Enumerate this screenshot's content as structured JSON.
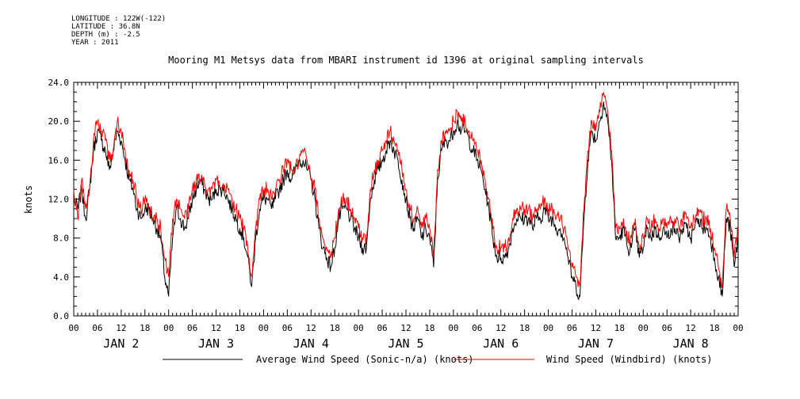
{
  "metadata": {
    "longitude": "LONGITUDE : 122W(-122)",
    "latitude": "LATITUDE : 36.8N",
    "depth": "DEPTH (m) : -2.5",
    "year": "YEAR : 2011"
  },
  "chart_data": {
    "type": "line",
    "title": "Mooring M1 Metsys data from MBARI instrument id 1396 at original sampling intervals",
    "ylabel": "knots",
    "xlabel": "",
    "ylim": [
      0,
      24
    ],
    "yticks": [
      0,
      4,
      8,
      12,
      16,
      20,
      24
    ],
    "ytick_labels": [
      "0.0",
      "4.0",
      "8.0",
      "12.0",
      "16.0",
      "20.0",
      "24.0"
    ],
    "x_unit": "hours since JAN 2 00:00",
    "xlim": [
      0,
      168
    ],
    "hour_tick_labels": [
      "00",
      "06",
      "12",
      "18"
    ],
    "day_labels": [
      "JAN  2",
      "JAN  3",
      "JAN  4",
      "JAN  5",
      "JAN  6",
      "JAN  7",
      "JAN  8"
    ],
    "grid": false,
    "legend_position": "bottom",
    "series": [
      {
        "name": "Average Wind Speed (Sonic-n/a) (knots)",
        "color": "#000000",
        "x": [
          0,
          1,
          2,
          3,
          4,
          5,
          6,
          7,
          8,
          9,
          10,
          11,
          12,
          13,
          14,
          15,
          16,
          17,
          18,
          19,
          20,
          21,
          22,
          23,
          24,
          25,
          26,
          27,
          28,
          29,
          30,
          31,
          32,
          33,
          34,
          35,
          36,
          37,
          38,
          39,
          40,
          41,
          42,
          43,
          44,
          45,
          46,
          47,
          48,
          49,
          50,
          51,
          52,
          53,
          54,
          55,
          56,
          57,
          58,
          59,
          60,
          61,
          62,
          63,
          64,
          65,
          66,
          67,
          68,
          69,
          70,
          71,
          72,
          73,
          74,
          75,
          76,
          77,
          78,
          79,
          80,
          81,
          82,
          83,
          84,
          85,
          86,
          87,
          88,
          89,
          90,
          91,
          92,
          93,
          94,
          95,
          96,
          97,
          98,
          99,
          100,
          101,
          102,
          103,
          104,
          105,
          106,
          107,
          108,
          109,
          110,
          111,
          112,
          113,
          114,
          115,
          116,
          117,
          118,
          119,
          120,
          121,
          122,
          123,
          124,
          125,
          126,
          127,
          128,
          129,
          130,
          131,
          132,
          133,
          134,
          135,
          136,
          137,
          138,
          139,
          140,
          141,
          142,
          143,
          144,
          145,
          146,
          147,
          148,
          149,
          150,
          151,
          152,
          153,
          154,
          155,
          156,
          157,
          158,
          159,
          160,
          161,
          162,
          163,
          164,
          165,
          166,
          167,
          168
        ],
        "values": [
          12,
          11,
          13,
          10,
          13,
          17,
          19,
          18,
          17,
          15,
          17,
          19,
          18,
          16,
          14,
          13,
          11,
          10,
          11,
          11,
          10,
          9,
          8,
          4,
          2,
          8,
          11,
          10,
          9,
          10,
          12,
          13,
          14,
          13,
          12,
          12,
          13,
          13,
          13,
          12,
          11,
          10,
          9,
          8,
          6,
          3,
          8,
          11,
          12,
          12,
          11,
          12,
          13,
          14,
          15,
          14,
          15,
          16,
          16,
          15,
          14,
          12,
          9,
          7,
          6,
          5,
          7,
          10,
          11,
          11,
          10,
          9,
          8,
          7,
          7,
          12,
          14,
          15,
          16,
          17,
          18,
          17,
          16,
          14,
          12,
          10,
          9,
          10,
          8,
          9,
          8,
          5,
          14,
          17,
          18,
          18,
          19,
          20,
          19,
          19,
          18,
          17,
          16,
          15,
          13,
          11,
          8,
          6,
          6,
          6,
          7,
          9,
          10,
          10,
          10,
          10,
          9,
          10,
          10,
          11,
          10,
          10,
          9,
          9,
          8,
          6,
          4,
          3,
          2,
          10,
          16,
          19,
          18,
          20,
          22,
          20,
          16,
          8,
          8,
          9,
          7,
          7,
          9,
          6,
          7,
          9,
          8,
          9,
          8,
          9,
          8,
          9,
          9,
          8,
          9,
          9,
          8,
          9,
          10,
          9,
          9,
          8,
          6,
          4,
          2,
          10,
          9,
          5,
          8
        ],
        "range_y": [
          1.7,
          22.1
        ]
      },
      {
        "name": "Wind Speed (Windbird) (knots)",
        "color": "#ff0000",
        "x": [
          0,
          1,
          2,
          3,
          4,
          5,
          6,
          7,
          8,
          9,
          10,
          11,
          12,
          13,
          14,
          15,
          16,
          17,
          18,
          19,
          20,
          21,
          22,
          23,
          24,
          25,
          26,
          27,
          28,
          29,
          30,
          31,
          32,
          33,
          34,
          35,
          36,
          37,
          38,
          39,
          40,
          41,
          42,
          43,
          44,
          45,
          46,
          47,
          48,
          49,
          50,
          51,
          52,
          53,
          54,
          55,
          56,
          57,
          58,
          59,
          60,
          61,
          62,
          63,
          64,
          65,
          66,
          67,
          68,
          69,
          70,
          71,
          72,
          73,
          74,
          75,
          76,
          77,
          78,
          79,
          80,
          81,
          82,
          83,
          84,
          85,
          86,
          87,
          88,
          89,
          90,
          91,
          92,
          93,
          94,
          95,
          96,
          97,
          98,
          99,
          100,
          101,
          102,
          103,
          104,
          105,
          106,
          107,
          108,
          109,
          110,
          111,
          112,
          113,
          114,
          115,
          116,
          117,
          118,
          119,
          120,
          121,
          122,
          123,
          124,
          125,
          126,
          127,
          128,
          129,
          130,
          131,
          132,
          133,
          134,
          135,
          136,
          137,
          138,
          139,
          140,
          141,
          142,
          143,
          144,
          145,
          146,
          147,
          148,
          149,
          150,
          151,
          152,
          153,
          154,
          155,
          156,
          157,
          158,
          159,
          160,
          161,
          162,
          163,
          164,
          165,
          166,
          167,
          168
        ],
        "values": [
          13,
          10,
          14,
          11,
          13,
          18,
          20,
          19,
          18,
          16,
          17,
          20,
          19,
          17,
          15,
          14,
          12,
          11,
          12,
          11,
          10,
          10,
          9,
          6,
          4,
          10,
          12,
          11,
          10,
          11,
          13,
          14,
          14,
          14,
          13,
          13,
          14,
          13,
          13,
          13,
          12,
          11,
          10,
          9,
          7,
          4,
          9,
          12,
          13,
          13,
          12,
          13,
          14,
          15,
          16,
          15,
          15,
          16,
          17,
          16,
          14,
          13,
          10,
          8,
          7,
          6,
          8,
          11,
          12,
          12,
          11,
          10,
          9,
          8,
          8,
          13,
          15,
          16,
          17,
          18,
          19,
          18,
          17,
          15,
          13,
          11,
          10,
          11,
          9,
          10,
          9,
          6,
          15,
          18,
          19,
          19,
          20,
          21,
          20,
          20,
          19,
          18,
          17,
          16,
          14,
          12,
          9,
          7,
          7,
          7,
          8,
          10,
          11,
          11,
          11,
          11,
          10,
          11,
          11,
          12,
          11,
          11,
          10,
          10,
          9,
          7,
          5,
          4,
          3,
          11,
          17,
          20,
          19,
          21,
          23,
          21,
          17,
          9,
          9,
          10,
          8,
          8,
          10,
          7,
          8,
          10,
          9,
          10,
          9,
          10,
          9,
          10,
          10,
          9,
          10,
          10,
          9,
          10,
          11,
          10,
          10,
          9,
          7,
          5,
          3,
          11,
          10,
          6,
          9
        ],
        "range_y": [
          2.5,
          23.0
        ]
      }
    ]
  }
}
